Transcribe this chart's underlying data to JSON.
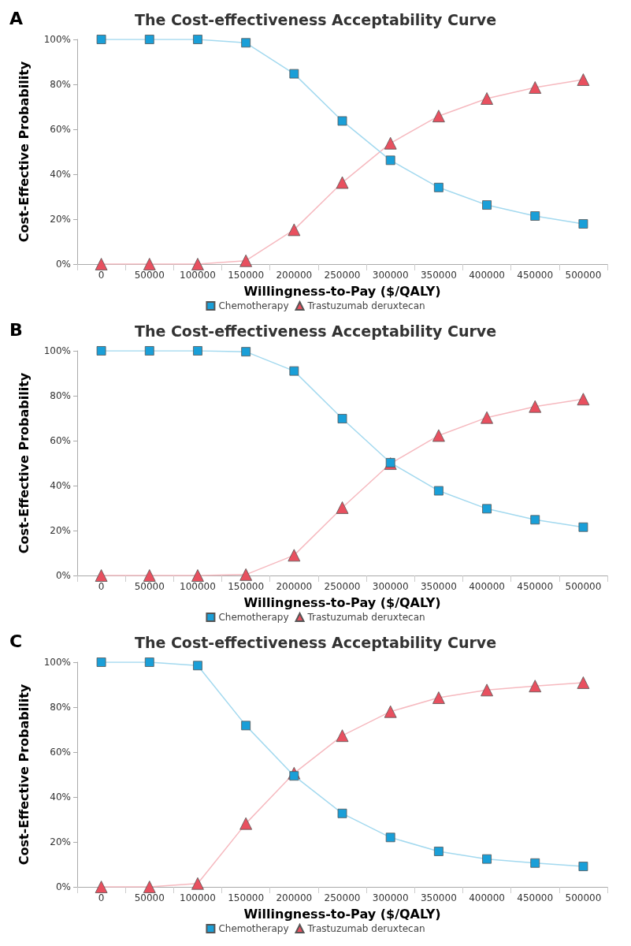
{
  "chart_data": [
    {
      "type": "line",
      "title": "The Cost-effectiveness Acceptability Curve",
      "annotations": [
        "A"
      ],
      "xlabel": "Willingness-to-Pay ($/QALY)",
      "ylabel": "Cost-Effective Probability",
      "categories": [
        "0",
        "50000",
        "100000",
        "150000",
        "200000",
        "250000",
        "300000",
        "350000",
        "400000",
        "450000",
        "500000"
      ],
      "series": [
        {
          "name": "Chemotherapy",
          "color": "#1a9fd8",
          "marker": "square",
          "values": [
            100,
            100,
            100,
            98.5,
            84.7,
            63.7,
            46.2,
            34.1,
            26.3,
            21.4,
            17.9
          ]
        },
        {
          "name": "Trastuzumab deruxtecan",
          "color": "#e8505f",
          "marker": "triangle",
          "values": [
            0,
            0,
            0,
            1.5,
            15.3,
            36.3,
            53.8,
            65.9,
            73.7,
            78.6,
            82.1
          ]
        }
      ],
      "ylim": [
        0,
        100
      ],
      "yticks": [
        {
          "value": 0,
          "label": "0%"
        },
        {
          "value": 20,
          "label": "20%"
        },
        {
          "value": 40,
          "label": "40%"
        },
        {
          "value": 60,
          "label": "60%"
        },
        {
          "value": 80,
          "label": "80%"
        },
        {
          "value": 100,
          "label": "100%"
        }
      ],
      "grid": false,
      "legend": "bottom"
    },
    {
      "type": "line",
      "title": "The Cost-effectiveness Acceptability Curve",
      "annotations": [
        "B"
      ],
      "xlabel": "Willingness-to-Pay ($/QALY)",
      "ylabel": "Cost-Effective Probability",
      "categories": [
        "0",
        "50000",
        "100000",
        "150000",
        "200000",
        "250000",
        "300000",
        "350000",
        "400000",
        "450000",
        "500000"
      ],
      "series": [
        {
          "name": "Chemotherapy",
          "color": "#1a9fd8",
          "marker": "square",
          "values": [
            100,
            100,
            100,
            99.6,
            91,
            69.8,
            50.2,
            37.7,
            29.7,
            24.8,
            21.5
          ]
        },
        {
          "name": "Trastuzumab deruxtecan",
          "color": "#e8505f",
          "marker": "triangle",
          "values": [
            0,
            0,
            0,
            0.4,
            9,
            30.2,
            49.8,
            62.3,
            70.3,
            75.2,
            78.5
          ]
        }
      ],
      "ylim": [
        0,
        100
      ],
      "yticks": [
        {
          "value": 0,
          "label": "0%"
        },
        {
          "value": 20,
          "label": "20%"
        },
        {
          "value": 40,
          "label": "40%"
        },
        {
          "value": 60,
          "label": "60%"
        },
        {
          "value": 80,
          "label": "80%"
        },
        {
          "value": 100,
          "label": "100%"
        }
      ],
      "grid": false,
      "legend": "bottom"
    },
    {
      "type": "line",
      "title": "The Cost-effectiveness Acceptability Curve",
      "annotations": [
        "C"
      ],
      "xlabel": "Willingness-to-Pay ($/QALY)",
      "ylabel": "Cost-Effective Probability",
      "categories": [
        "0",
        "50000",
        "100000",
        "150000",
        "200000",
        "250000",
        "300000",
        "350000",
        "400000",
        "450000",
        "500000"
      ],
      "series": [
        {
          "name": "Chemotherapy",
          "color": "#1a9fd8",
          "marker": "square",
          "values": [
            100,
            100,
            98.5,
            71.8,
            49.4,
            32.7,
            22,
            15.8,
            12.4,
            10.6,
            9.1
          ]
        },
        {
          "name": "Trastuzumab deruxtecan",
          "color": "#e8505f",
          "marker": "triangle",
          "values": [
            0,
            0,
            1.5,
            28.2,
            50.6,
            67.3,
            78,
            84.2,
            87.6,
            89.4,
            90.9
          ]
        }
      ],
      "ylim": [
        0,
        100
      ],
      "yticks": [
        {
          "value": 0,
          "label": "0%"
        },
        {
          "value": 20,
          "label": "20%"
        },
        {
          "value": 40,
          "label": "40%"
        },
        {
          "value": 60,
          "label": "60%"
        },
        {
          "value": 80,
          "label": "80%"
        },
        {
          "value": 100,
          "label": "100%"
        }
      ],
      "grid": false,
      "legend": "bottom"
    }
  ]
}
